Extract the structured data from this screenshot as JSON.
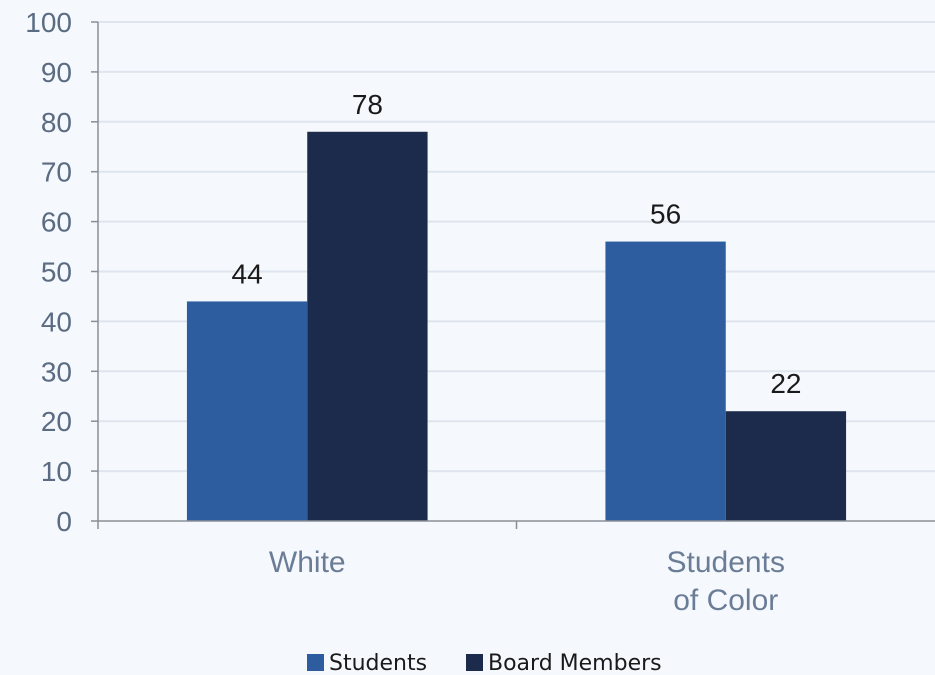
{
  "chart_data": {
    "type": "bar",
    "categories": [
      [
        "White"
      ],
      [
        "Students",
        "of Color"
      ]
    ],
    "series": [
      {
        "name": "Students",
        "color": "#2e5d9f",
        "values": [
          44,
          56
        ]
      },
      {
        "name": "Board Members",
        "color": "#1c2a4b",
        "values": [
          78,
          22
        ]
      }
    ],
    "ylim": [
      0,
      100
    ],
    "yticks": [
      "0",
      "10",
      "20",
      "30",
      "40",
      "50",
      "60",
      "70",
      "80",
      "90",
      "100"
    ],
    "grid": true,
    "legend_position": "bottom",
    "colors": {
      "grid": "#dfe5ee",
      "axis": "#8a8f96",
      "background": "#f5f8fc"
    }
  }
}
